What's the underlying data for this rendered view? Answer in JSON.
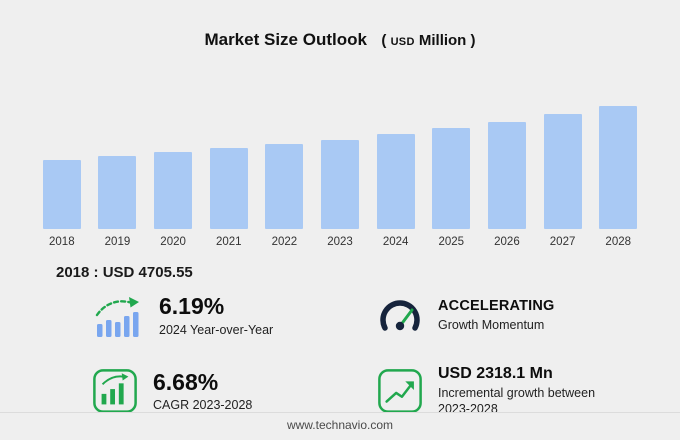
{
  "title": {
    "main": "Market Size Outlook",
    "paren_open": "(",
    "currency": "USD",
    "unit": "Million",
    "paren_close": ")"
  },
  "chart_data": {
    "type": "bar",
    "title": "Market Size Outlook (USD Million)",
    "categories": [
      "2018",
      "2019",
      "2020",
      "2021",
      "2022",
      "2023",
      "2024",
      "2025",
      "2026",
      "2027",
      "2028"
    ],
    "values": [
      4705.55,
      4960,
      5230,
      5510,
      5790,
      6071.3,
      6447.1,
      6860,
      7310,
      7830,
      8389.4
    ],
    "ylabel": "USD Million",
    "ylim": [
      0,
      8800
    ],
    "bar_color": "#a9c9f4",
    "grid": false,
    "legend": false
  },
  "base_year": {
    "text": "2018 : USD 4705.55"
  },
  "stats": [
    {
      "id": "yoy",
      "icon": "growth-bars-arrow-icon",
      "value": "6.19%",
      "label": "2024 Year-over-Year"
    },
    {
      "id": "momentum",
      "icon": "speedometer-icon",
      "value": "ACCELERATING",
      "label": "Growth Momentum"
    },
    {
      "id": "cagr",
      "icon": "bar-growth-icon",
      "value": "6.68%",
      "label": "CAGR 2023-2028"
    },
    {
      "id": "incremental",
      "icon": "line-growth-icon",
      "value": "USD 2318.1 Mn",
      "label": "Incremental growth between 2023-2028"
    }
  ],
  "footer": {
    "url": "www.technavio.com"
  },
  "colors": {
    "background": "#efefef",
    "bar": "#a9c9f4",
    "accent_green": "#21a84e",
    "gauge_dark": "#16243c",
    "text": "#111111"
  }
}
